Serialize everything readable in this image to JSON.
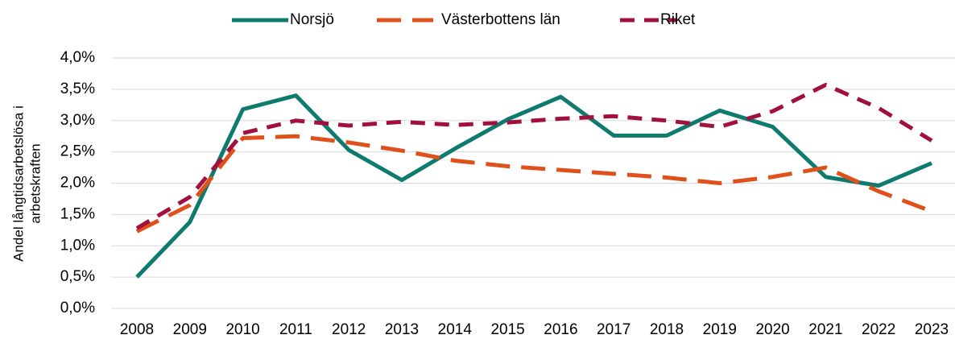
{
  "chart_data": {
    "type": "line",
    "ylabel": [
      "Andel långtidsarbetslösa i",
      "arbetskraften"
    ],
    "categories": [
      "2008",
      "2009",
      "2010",
      "2011",
      "2012",
      "2013",
      "2014",
      "2015",
      "2016",
      "2017",
      "2018",
      "2019",
      "2020",
      "2021",
      "2022",
      "2023"
    ],
    "series": [
      {
        "name": "Norsjö",
        "color": "#0e7b6e",
        "line_style": "solid",
        "values": [
          0.5,
          1.38,
          3.18,
          3.4,
          2.53,
          2.05,
          2.55,
          3.02,
          3.38,
          2.76,
          2.76,
          3.16,
          2.9,
          2.1,
          1.96,
          2.32
        ]
      },
      {
        "name": "Västerbottens län",
        "color": "#e0501a",
        "line_style": "long-dash",
        "values": [
          1.23,
          1.65,
          2.72,
          2.75,
          2.65,
          2.52,
          2.36,
          2.27,
          2.21,
          2.15,
          2.09,
          2.0,
          2.1,
          2.25,
          1.87,
          1.55
        ]
      },
      {
        "name": "Riket",
        "color": "#a1103e",
        "line_style": "dash",
        "values": [
          1.28,
          1.78,
          2.8,
          3.0,
          2.92,
          2.98,
          2.93,
          2.97,
          3.03,
          3.07,
          3.0,
          2.9,
          3.15,
          3.57,
          3.2,
          2.68
        ]
      }
    ],
    "ylim": [
      0,
      4
    ],
    "yticks": [
      {
        "value": 0,
        "label": "0,0%"
      },
      {
        "value": 0.5,
        "label": "0,5%"
      },
      {
        "value": 1,
        "label": "1,0%"
      },
      {
        "value": 1.5,
        "label": "1,5%"
      },
      {
        "value": 2,
        "label": "2,0%"
      },
      {
        "value": 2.5,
        "label": "2,5%"
      },
      {
        "value": 3,
        "label": "3,0%"
      },
      {
        "value": 3.5,
        "label": "3,5%"
      },
      {
        "value": 4,
        "label": "4,0%"
      }
    ],
    "grid": true,
    "legend": "top"
  }
}
